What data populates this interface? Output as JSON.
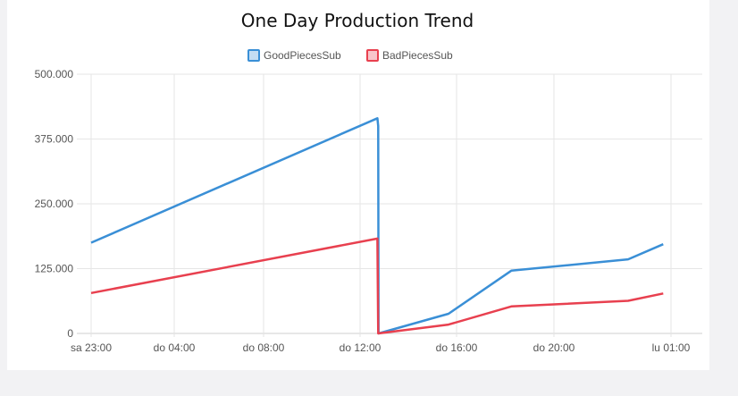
{
  "chart_data": {
    "type": "line",
    "title": "One Day Production Trend",
    "xlabel": "",
    "ylabel": "",
    "x_ticks": [
      "sa 23:00",
      "do 04:00",
      "do 08:00",
      "do 12:00",
      "do 16:00",
      "do 20:00",
      "lu 01:00"
    ],
    "y_ticks": [
      "0",
      "125.000",
      "250.000",
      "375.000",
      "500.000"
    ],
    "ylim": [
      0,
      500000
    ],
    "grid": true,
    "legend_position": "top",
    "series": [
      {
        "name": "GoodPiecesSub",
        "color": "#3a8fd6",
        "x": [
          "sa 23:00",
          "do 12:43",
          "do 12:45",
          "do 12:46",
          "do 15:40",
          "do 18:15",
          "do 23:10",
          "do 24:40"
        ],
        "y": [
          175000,
          415000,
          400000,
          0,
          38000,
          121000,
          143000,
          172000
        ]
      },
      {
        "name": "BadPiecesSub",
        "color": "#e8404f",
        "x": [
          "sa 23:00",
          "do 12:43",
          "do 12:45",
          "do 15:40",
          "do 18:15",
          "do 23:10",
          "do 24:40"
        ],
        "y": [
          78000,
          183000,
          0,
          17000,
          52000,
          63000,
          77000
        ]
      }
    ]
  }
}
